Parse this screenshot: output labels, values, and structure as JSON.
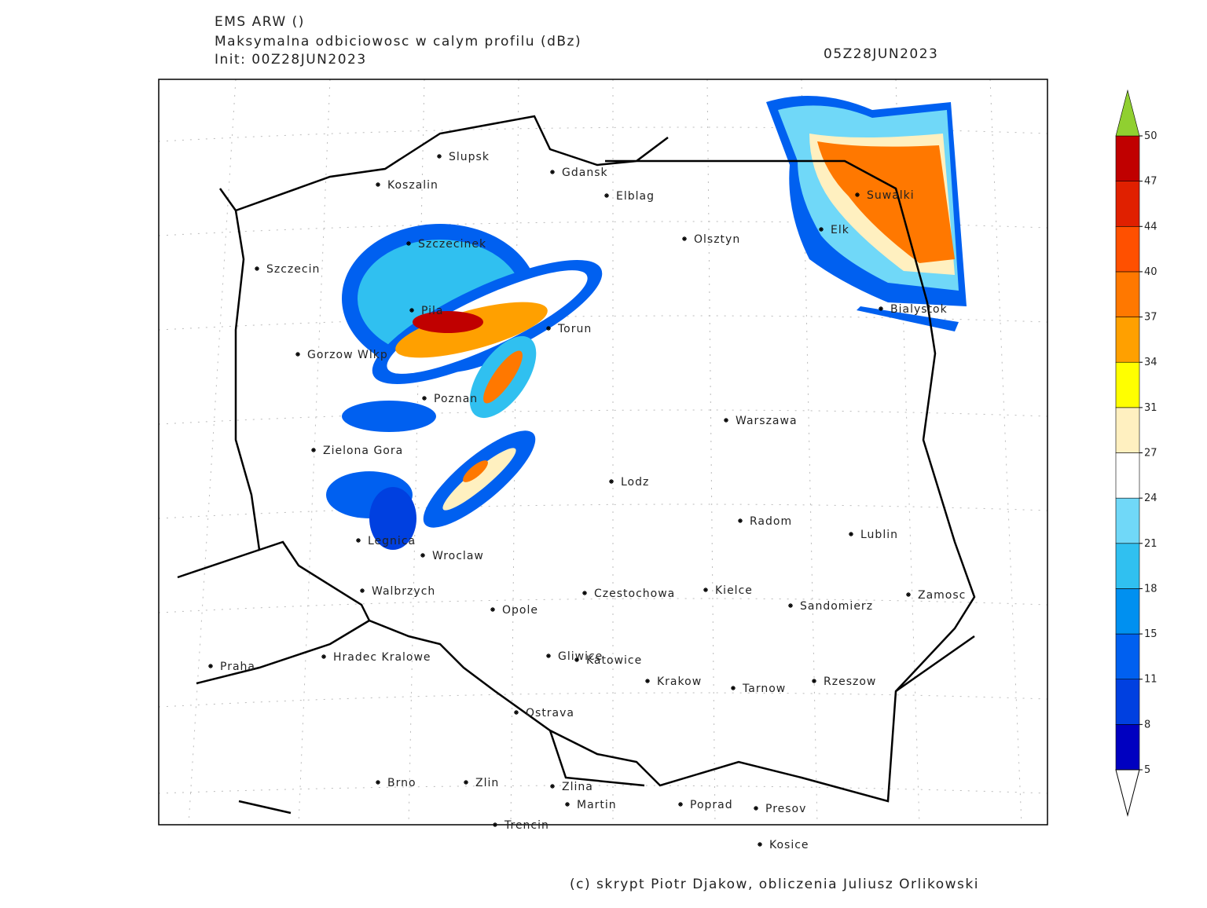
{
  "header": {
    "title": "EMS ARW ()",
    "subtitle": "Maksymalna odbiciowosc w calym profilu (dBz)",
    "init": "Init: 00Z28JUN2023",
    "valid": "05Z28JUN2023"
  },
  "cities": [
    "Slupsk",
    "Koszalin",
    "Gdansk",
    "Elblag",
    "Olsztyn",
    "Suwalki",
    "Elk",
    "Szczecinek",
    "Szczecin",
    "Pila",
    "Torun",
    "Bialystok",
    "Gorzow Wlkp",
    "Poznan",
    "Warszawa",
    "Zielona Gora",
    "Lodz",
    "Radom",
    "Lublin",
    "Legnica",
    "Wroclaw",
    "Walbrzych",
    "Czestochowa",
    "Kielce",
    "Opole",
    "Sandomierz",
    "Zamosc",
    "Praha",
    "Hradec Kralowe",
    "Gliwice",
    "Katowice",
    "Krakow",
    "Tarnow",
    "Rzeszow",
    "Ostrava",
    "Brno",
    "Zlin",
    "Zlina",
    "Martin",
    "Poprad",
    "Presov",
    "Trencin",
    "Kosice"
  ],
  "colorbar": {
    "levels": [
      5,
      8,
      11,
      15,
      18,
      21,
      24,
      27,
      31,
      34,
      37,
      40,
      44,
      47,
      50
    ],
    "colors": [
      "#0000c0",
      "#0040e0",
      "#0060f0",
      "#0090f0",
      "#30c0f0",
      "#70d8f8",
      "#ffffff",
      "#fff0c0",
      "#ffff00",
      "#ffa000",
      "#ff7800",
      "#ff5000",
      "#e02000",
      "#c00000"
    ],
    "over_color": "#90d030",
    "under_color": "#ffffff"
  },
  "credit": "(c) skrypt Piotr Djakow, obliczenia Juliusz Orlikowski"
}
